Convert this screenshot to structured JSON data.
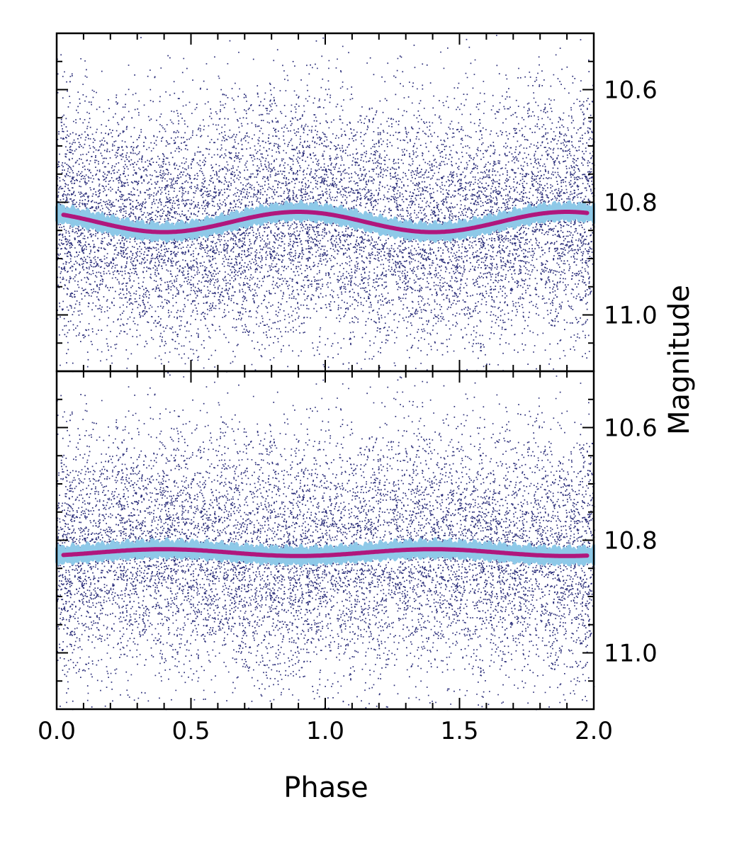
{
  "chart_data": {
    "type": "scatter",
    "xlabel": "Phase",
    "ylabel": "Magnitude",
    "xlim": [
      0.0,
      2.0
    ],
    "x_ticks": [
      "0.0",
      "0.5",
      "1.0",
      "1.5",
      "2.0"
    ],
    "y_inverted": true,
    "y_axis_side": "right",
    "colors": {
      "points": "#2b2e7a",
      "band": "#8ec9e8",
      "model": "#b0177d",
      "axes": "#000000"
    },
    "panels": [
      {
        "position": "top",
        "ylim": [
          10.5,
          11.1
        ],
        "y_ticks": [
          "10.6",
          "10.8",
          "11.0"
        ],
        "scatter": {
          "description_free": true,
          "center_mean": 10.835,
          "center_amplitude": 0.018,
          "center_phase_of_minimum_brightness": 0.4,
          "sigma": 0.11,
          "period": 1.0
        },
        "model_curve": {
          "mean": 10.835,
          "amplitude": 0.018,
          "phase_of_faintest": 0.4,
          "band_halfwidth": 0.012
        }
      },
      {
        "position": "bottom",
        "ylim": [
          10.5,
          11.1
        ],
        "y_ticks": [
          "10.6",
          "10.8",
          "11.0"
        ],
        "scatter": {
          "center_mean": 10.822,
          "center_amplitude": 0.006,
          "center_phase_of_minimum_brightness": 0.9,
          "sigma": 0.11,
          "period": 1.0
        },
        "model_curve": {
          "mean": 10.822,
          "amplitude": 0.006,
          "phase_of_faintest": 0.9,
          "band_halfwidth": 0.012
        }
      }
    ]
  }
}
